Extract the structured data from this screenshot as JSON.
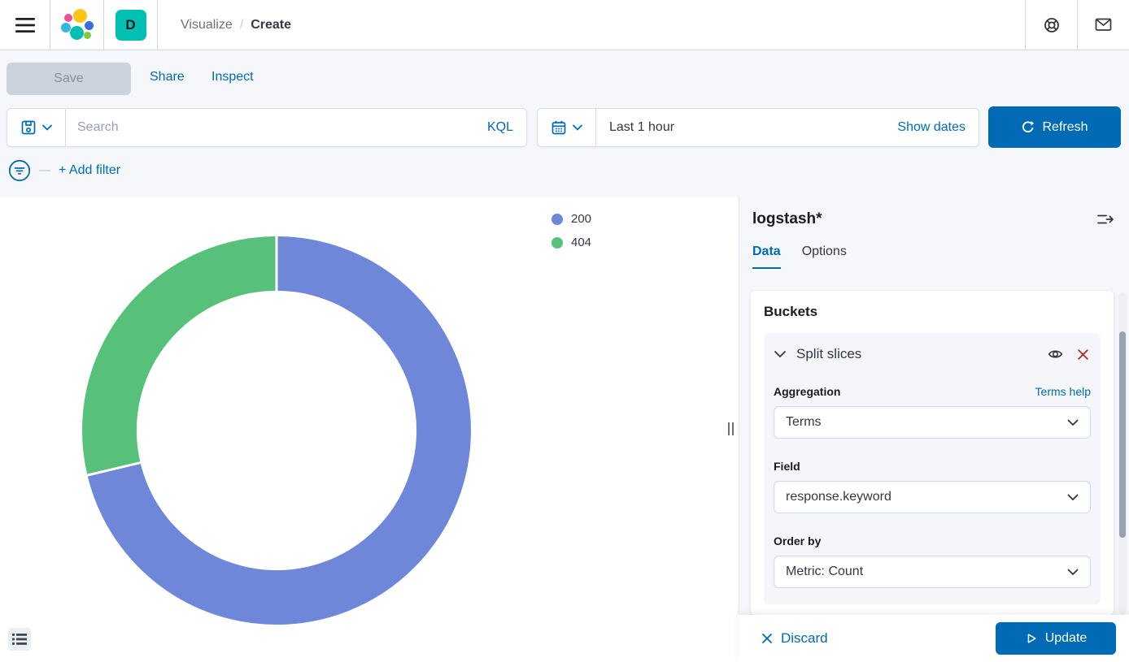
{
  "colors": {
    "primary": "#006BB4",
    "text": "#343741",
    "text_subdued": "#69707D",
    "border": "#D3DAE6",
    "page_background": "#F5F7FA",
    "badge_background": "#00BFB3",
    "danger": "#BD271E",
    "scrollbar_thumb": "#98A2B3"
  },
  "header": {
    "badge_label": "D",
    "breadcrumb": {
      "parent": "Visualize",
      "divider": "/",
      "current": "Create"
    }
  },
  "toolbar": {
    "save_label": "Save",
    "share_label": "Share",
    "inspect_label": "Inspect"
  },
  "query_bar": {
    "search_placeholder": "Search",
    "language_label": "KQL",
    "time_value": "Last 1 hour",
    "show_dates_label": "Show dates",
    "refresh_label": "Refresh"
  },
  "filter_bar": {
    "add_filter_label": "+ Add filter"
  },
  "chart_data": {
    "type": "pie",
    "subtype": "donut",
    "categories": [
      "200",
      "404"
    ],
    "values_pct": [
      71.3,
      28.7
    ],
    "colors": [
      "#6F87D8",
      "#57C17B"
    ],
    "start_angle_deg": 0,
    "direction": "clockwise",
    "inner_radius_ratio": 0.72,
    "legend_position": "top-right",
    "legend": [
      {
        "label": "200",
        "color": "#6F87D8"
      },
      {
        "label": "404",
        "color": "#57C17B"
      }
    ]
  },
  "side_panel": {
    "title": "logstash*",
    "tabs": [
      {
        "label": "Data",
        "active": true
      },
      {
        "label": "Options",
        "active": false
      }
    ],
    "buckets": {
      "section_title": "Buckets",
      "bucket_label": "Split slices",
      "aggregation_label": "Aggregation",
      "aggregation_help_label": "Terms help",
      "aggregation_value": "Terms",
      "field_label": "Field",
      "field_value": "response.keyword",
      "order_by_label": "Order by",
      "order_by_value": "Metric: Count"
    },
    "footer": {
      "discard_label": "Discard",
      "update_label": "Update"
    }
  }
}
